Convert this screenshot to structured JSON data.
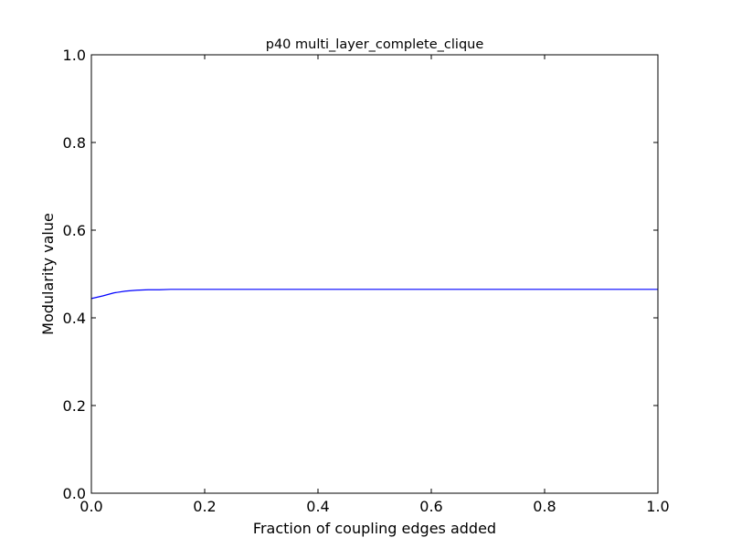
{
  "chart_data": {
    "type": "line",
    "title": "p40 multi_layer_complete_clique",
    "xlabel": "Fraction of coupling edges added",
    "ylabel": "Modularity value",
    "xlim": [
      0.0,
      1.0
    ],
    "ylim": [
      0.0,
      1.0
    ],
    "xticks": [
      "0.0",
      "0.2",
      "0.4",
      "0.6",
      "0.8",
      "1.0"
    ],
    "yticks": [
      "0.0",
      "0.2",
      "0.4",
      "0.6",
      "0.8",
      "1.0"
    ],
    "grid": false,
    "legend": "none",
    "series": [
      {
        "color": "#0000ff",
        "x": [
          0.0,
          0.02,
          0.04,
          0.06,
          0.08,
          0.1,
          0.12,
          0.14,
          0.2,
          0.3,
          0.4,
          0.5,
          0.6,
          0.7,
          0.8,
          0.9,
          1.0
        ],
        "y": [
          0.444,
          0.45,
          0.457,
          0.461,
          0.463,
          0.464,
          0.464,
          0.465,
          0.465,
          0.465,
          0.465,
          0.465,
          0.465,
          0.465,
          0.465,
          0.465,
          0.465
        ]
      }
    ]
  }
}
